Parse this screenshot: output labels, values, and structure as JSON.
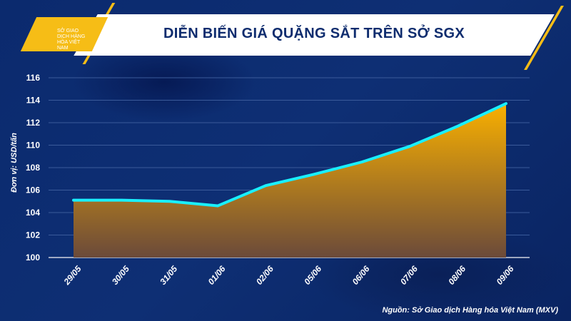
{
  "header": {
    "title": "DIỄN BIẾN GIÁ QUẶNG SẮT TRÊN SỞ SGX",
    "logo_text": "SỞ GIAO DỊCH HÀNG HÓA VIỆT NAM"
  },
  "source": "Nguồn: Sở Giao dịch Hàng hóa Việt Nam (MXV)",
  "colors": {
    "line": "#19f0ff",
    "fill_top": "#f9b000",
    "fill_bottom": "#6b4a3a",
    "background": "#0e2f74",
    "accent": "#f6bd16"
  },
  "chart_data": {
    "type": "area",
    "title": "DIỄN BIẾN GIÁ QUẶNG SẮT TRÊN SỞ SGX",
    "ylabel": "Đơn vị: USD/tấn",
    "xlabel": "",
    "categories": [
      "29/05",
      "30/05",
      "31/05",
      "01/06",
      "02/06",
      "05/06",
      "06/06",
      "07/06",
      "08/06",
      "09/06"
    ],
    "values": [
      105.1,
      105.1,
      105.0,
      104.6,
      106.4,
      107.4,
      108.5,
      109.9,
      111.7,
      113.7
    ],
    "ylim": [
      100,
      116
    ],
    "yticks": [
      100,
      102,
      104,
      106,
      108,
      110,
      112,
      114,
      116
    ],
    "grid": true
  }
}
